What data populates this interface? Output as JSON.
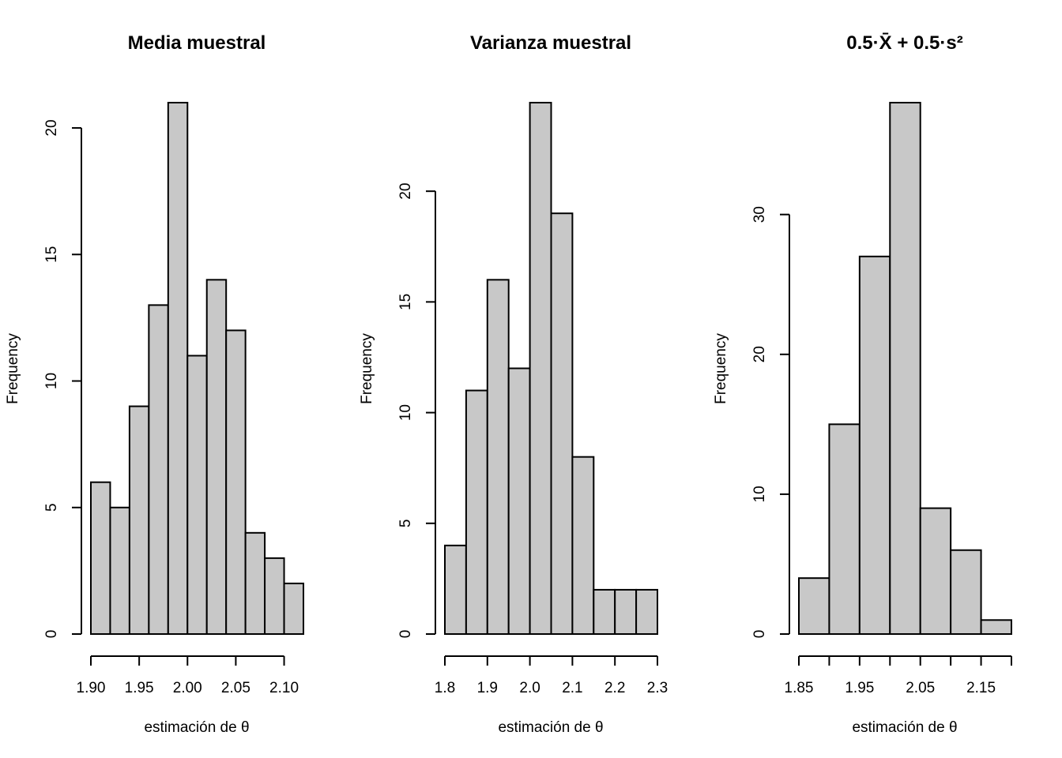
{
  "chart_data": [
    {
      "type": "bar",
      "subtype": "histogram",
      "title": "Media muestral",
      "xlabel": "estimación de θ",
      "ylabel": "Frequency",
      "breaks": [
        1.9,
        1.92,
        1.94,
        1.96,
        1.98,
        2.0,
        2.02,
        2.04,
        2.06,
        2.08,
        2.1,
        2.12
      ],
      "values": [
        6,
        5,
        9,
        13,
        21,
        11,
        14,
        12,
        4,
        3,
        2
      ],
      "xticks": [
        1.9,
        1.95,
        2.0,
        2.05,
        2.1
      ],
      "xtick_labels": [
        "1.90",
        "1.95",
        "2.00",
        "2.05",
        "2.10"
      ],
      "yticks": [
        0,
        5,
        10,
        15,
        20
      ],
      "ytick_labels": [
        "0",
        "5",
        "10",
        "15",
        "20"
      ],
      "xlim": [
        1.9,
        2.12
      ],
      "ylim": [
        0,
        21
      ],
      "grid": false,
      "color": "#c8c8c8"
    },
    {
      "type": "bar",
      "subtype": "histogram",
      "title": "Varianza muestral",
      "xlabel": "estimación de θ",
      "ylabel": "Frequency",
      "breaks": [
        1.8,
        1.85,
        1.9,
        1.95,
        2.0,
        2.05,
        2.1,
        2.15,
        2.2,
        2.25,
        2.3
      ],
      "values": [
        4,
        11,
        16,
        12,
        24,
        19,
        8,
        2,
        2,
        2
      ],
      "xticks": [
        1.8,
        1.9,
        2.0,
        2.1,
        2.2,
        2.3
      ],
      "xtick_labels": [
        "1.8",
        "1.9",
        "2.0",
        "2.1",
        "2.2",
        "2.3"
      ],
      "yticks": [
        0,
        5,
        10,
        15,
        20
      ],
      "ytick_labels": [
        "0",
        "5",
        "10",
        "15",
        "20"
      ],
      "xlim": [
        1.8,
        2.3
      ],
      "ylim": [
        0,
        24
      ],
      "grid": false,
      "color": "#c8c8c8"
    },
    {
      "type": "bar",
      "subtype": "histogram",
      "title": "0.5·X̄ + 0.5·s²",
      "xlabel": "estimación de θ",
      "ylabel": "Frequency",
      "breaks": [
        1.85,
        1.9,
        1.95,
        2.0,
        2.05,
        2.1,
        2.15,
        2.2
      ],
      "values": [
        4,
        15,
        27,
        38,
        9,
        6,
        1
      ],
      "xticks": [
        1.85,
        1.9,
        1.95,
        2.0,
        2.05,
        2.1,
        2.15,
        2.2
      ],
      "xtick_labels": [
        "1.85",
        "",
        "1.95",
        "",
        "2.05",
        "",
        "2.15",
        ""
      ],
      "yticks": [
        0,
        10,
        20,
        30
      ],
      "ytick_labels": [
        "0",
        "10",
        "20",
        "30"
      ],
      "xlim": [
        1.85,
        2.2
      ],
      "ylim": [
        0,
        38
      ],
      "grid": false,
      "color": "#c8c8c8"
    }
  ]
}
